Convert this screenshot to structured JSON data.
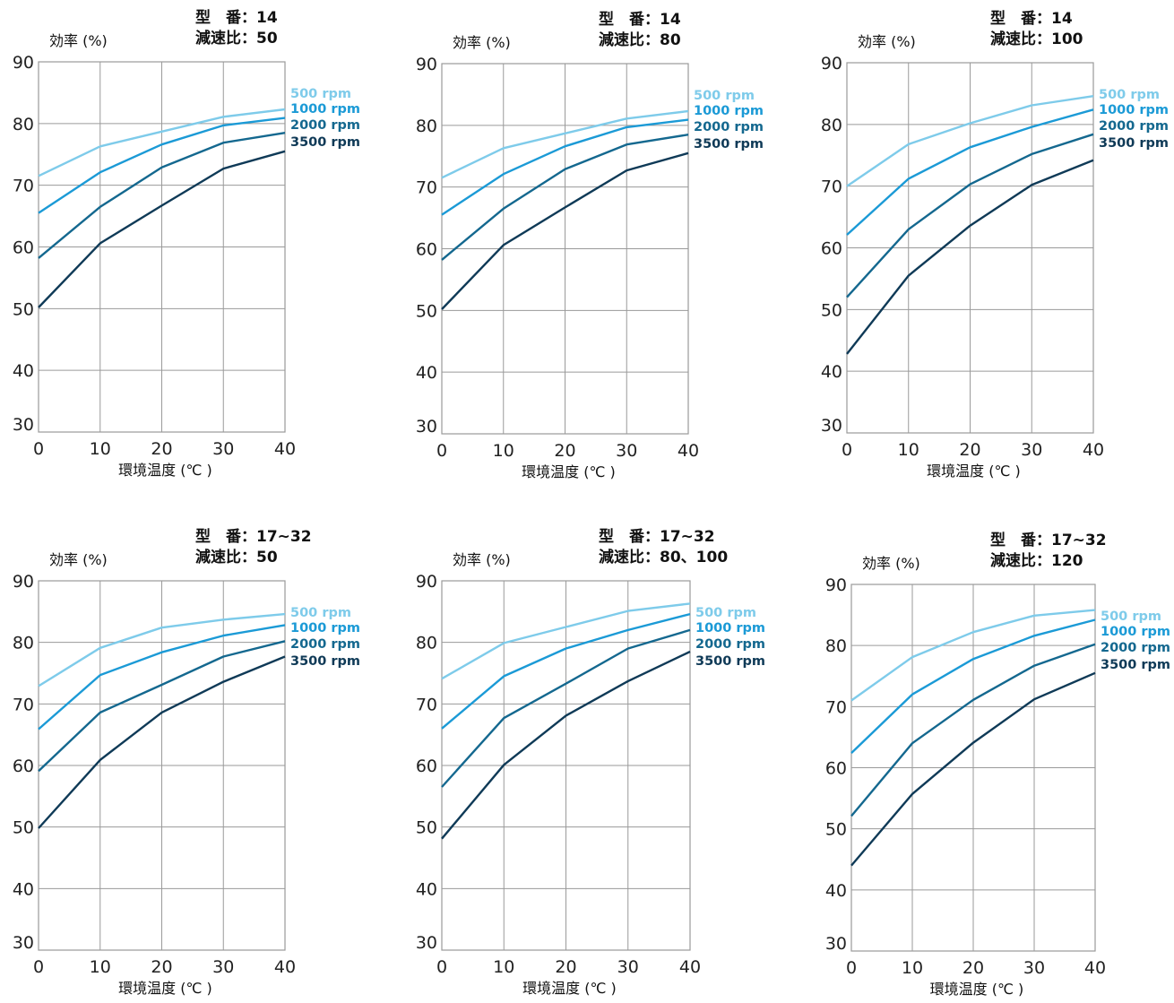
{
  "colors": {
    "500 rpm": "#7ecbea",
    "1000 rpm": "#1b9ad6",
    "2000 rpm": "#14688f",
    "3500 rpm": "#0f3a57",
    "grid": "#9a9a9a"
  },
  "chart_data": [
    {
      "type": "line",
      "header_line1": "型　番：14",
      "header_line2": "減速比：50",
      "ylabel": "効率 (%)",
      "xlabel": "環境温度 (℃ )",
      "xlim": [
        0,
        40
      ],
      "ylim": [
        30,
        90
      ],
      "x": [
        0,
        10,
        20,
        30,
        40
      ],
      "xticks": [
        "0",
        "10",
        "20",
        "30",
        "40"
      ],
      "yticks": [
        "30",
        "40",
        "50",
        "60",
        "70",
        "80",
        "90"
      ],
      "series": [
        {
          "name": "500 rpm",
          "values": [
            71.5,
            76.3,
            78.7,
            81.1,
            82.3
          ]
        },
        {
          "name": "1000 rpm",
          "values": [
            65.5,
            72.1,
            76.6,
            79.7,
            80.9
          ]
        },
        {
          "name": "2000 rpm",
          "values": [
            58.2,
            66.5,
            72.9,
            76.9,
            78.5
          ]
        },
        {
          "name": "3500 rpm",
          "values": [
            50.2,
            60.6,
            66.7,
            72.7,
            75.5
          ]
        }
      ]
    },
    {
      "type": "line",
      "header_line1": "型　番：14",
      "header_line2": "減速比：80",
      "ylabel": "効率 (%)",
      "xlabel": "環境温度 (℃ )",
      "xlim": [
        0,
        40
      ],
      "ylim": [
        30,
        90
      ],
      "x": [
        0,
        10,
        20,
        30,
        40
      ],
      "xticks": [
        "0",
        "10",
        "20",
        "30",
        "40"
      ],
      "yticks": [
        "30",
        "40",
        "50",
        "60",
        "70",
        "80",
        "90"
      ],
      "series": [
        {
          "name": "500 rpm",
          "values": [
            71.5,
            76.3,
            78.7,
            81.1,
            82.3
          ]
        },
        {
          "name": "1000 rpm",
          "values": [
            65.5,
            72.1,
            76.6,
            79.7,
            80.9
          ]
        },
        {
          "name": "2000 rpm",
          "values": [
            58.2,
            66.5,
            72.9,
            76.9,
            78.5
          ]
        },
        {
          "name": "3500 rpm",
          "values": [
            50.2,
            60.6,
            66.7,
            72.7,
            75.5
          ]
        }
      ]
    },
    {
      "type": "line",
      "header_line1": "型　番：14",
      "header_line2": "減速比：100",
      "ylabel": "効率 (%)",
      "xlabel": "環境温度 (℃ )",
      "xlim": [
        0,
        40
      ],
      "ylim": [
        30,
        90
      ],
      "x": [
        0,
        10,
        20,
        30,
        40
      ],
      "xticks": [
        "0",
        "10",
        "20",
        "30",
        "40"
      ],
      "yticks": [
        "30",
        "40",
        "50",
        "60",
        "70",
        "80",
        "90"
      ],
      "series": [
        {
          "name": "500 rpm",
          "values": [
            70.0,
            76.8,
            80.2,
            83.1,
            84.6
          ]
        },
        {
          "name": "1000 rpm",
          "values": [
            62.1,
            71.2,
            76.3,
            79.6,
            82.4
          ]
        },
        {
          "name": "2000 rpm",
          "values": [
            52.0,
            63.0,
            70.3,
            75.2,
            78.4
          ]
        },
        {
          "name": "3500 rpm",
          "values": [
            42.8,
            55.5,
            63.6,
            70.2,
            74.2
          ]
        }
      ]
    },
    {
      "type": "line",
      "header_line1": "型　番：17~32",
      "header_line2": "減速比：50",
      "ylabel": "効率 (%)",
      "xlabel": "環境温度 (℃ )",
      "xlim": [
        0,
        40
      ],
      "ylim": [
        30,
        90
      ],
      "x": [
        0,
        10,
        20,
        30,
        40
      ],
      "xticks": [
        "0",
        "10",
        "20",
        "30",
        "40"
      ],
      "yticks": [
        "30",
        "40",
        "50",
        "60",
        "70",
        "80",
        "90"
      ],
      "series": [
        {
          "name": "500 rpm",
          "values": [
            72.9,
            79.1,
            82.4,
            83.7,
            84.6
          ]
        },
        {
          "name": "1000 rpm",
          "values": [
            65.9,
            74.7,
            78.4,
            81.1,
            82.8
          ]
        },
        {
          "name": "2000 rpm",
          "values": [
            59.1,
            68.6,
            73.1,
            77.7,
            80.2
          ]
        },
        {
          "name": "3500 rpm",
          "values": [
            49.8,
            60.9,
            68.6,
            73.6,
            77.7
          ]
        }
      ]
    },
    {
      "type": "line",
      "header_line1": "型　番：17~32",
      "header_line2": "減速比：80、100",
      "ylabel": "効率 (%)",
      "xlabel": "環境温度 (℃ )",
      "xlim": [
        0,
        40
      ],
      "ylim": [
        30,
        90
      ],
      "x": [
        0,
        10,
        20,
        30,
        40
      ],
      "xticks": [
        "0",
        "10",
        "20",
        "30",
        "40"
      ],
      "yticks": [
        "30",
        "40",
        "50",
        "60",
        "70",
        "80",
        "90"
      ],
      "series": [
        {
          "name": "500 rpm",
          "values": [
            74.1,
            79.9,
            82.5,
            85.1,
            86.3
          ]
        },
        {
          "name": "1000 rpm",
          "values": [
            66.0,
            74.5,
            79.0,
            82.0,
            84.6
          ]
        },
        {
          "name": "2000 rpm",
          "values": [
            56.5,
            67.7,
            73.3,
            79.0,
            82.0
          ]
        },
        {
          "name": "3500 rpm",
          "values": [
            48.1,
            60.1,
            68.1,
            73.7,
            78.5
          ]
        }
      ]
    },
    {
      "type": "line",
      "header_line1": "型　番：17~32",
      "header_line2": "減速比：120",
      "ylabel": "効率 (%)",
      "xlabel": "環境温度 (℃ )",
      "xlim": [
        0,
        40
      ],
      "ylim": [
        30,
        90
      ],
      "x": [
        0,
        10,
        20,
        30,
        40
      ],
      "xticks": [
        "0",
        "10",
        "20",
        "30",
        "40"
      ],
      "yticks": [
        "30",
        "40",
        "50",
        "60",
        "70",
        "80",
        "90"
      ],
      "series": [
        {
          "name": "500 rpm",
          "values": [
            71.0,
            78.1,
            82.2,
            84.9,
            85.8
          ]
        },
        {
          "name": "1000 rpm",
          "values": [
            62.4,
            72.0,
            77.8,
            81.6,
            84.2
          ]
        },
        {
          "name": "2000 rpm",
          "values": [
            52.1,
            64.0,
            71.1,
            76.7,
            80.2
          ]
        },
        {
          "name": "3500 rpm",
          "values": [
            44.0,
            55.7,
            64.1,
            71.2,
            75.5
          ]
        }
      ]
    }
  ]
}
